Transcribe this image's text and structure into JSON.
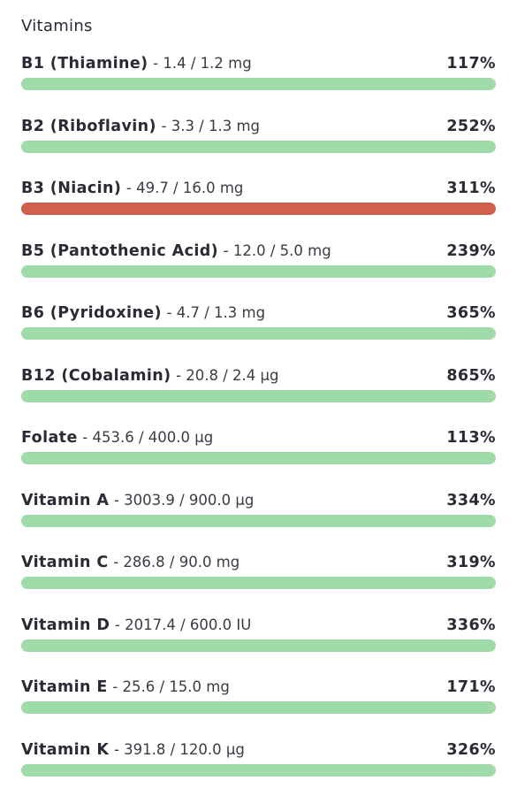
{
  "header": {
    "title": "Vitamins"
  },
  "colors": {
    "ok": "#9edba9",
    "high": "#d05f4e"
  },
  "rows": [
    {
      "name": "B1 (Thiamine)",
      "detail": "- 1.4 / 1.2 mg",
      "percent": "117%",
      "status": "ok"
    },
    {
      "name": "B2 (Riboflavin)",
      "detail": "- 3.3 / 1.3 mg",
      "percent": "252%",
      "status": "ok"
    },
    {
      "name": "B3 (Niacin)",
      "detail": "- 49.7 / 16.0 mg",
      "percent": "311%",
      "status": "high"
    },
    {
      "name": "B5 (Pantothenic Acid)",
      "detail": "- 12.0 / 5.0 mg",
      "percent": "239%",
      "status": "ok"
    },
    {
      "name": "B6 (Pyridoxine)",
      "detail": "- 4.7 / 1.3 mg",
      "percent": "365%",
      "status": "ok"
    },
    {
      "name": "B12 (Cobalamin)",
      "detail": "- 20.8 / 2.4 µg",
      "percent": "865%",
      "status": "ok"
    },
    {
      "name": "Folate",
      "detail": "- 453.6 / 400.0 µg",
      "percent": "113%",
      "status": "ok"
    },
    {
      "name": "Vitamin A",
      "detail": "- 3003.9 / 900.0 µg",
      "percent": "334%",
      "status": "ok"
    },
    {
      "name": "Vitamin C",
      "detail": "- 286.8 / 90.0 mg",
      "percent": "319%",
      "status": "ok"
    },
    {
      "name": "Vitamin D",
      "detail": "- 2017.4 / 600.0 IU",
      "percent": "336%",
      "status": "ok"
    },
    {
      "name": "Vitamin E",
      "detail": "- 25.6 / 15.0 mg",
      "percent": "171%",
      "status": "ok"
    },
    {
      "name": "Vitamin K",
      "detail": "- 391.8 / 120.0 µg",
      "percent": "326%",
      "status": "ok"
    }
  ]
}
